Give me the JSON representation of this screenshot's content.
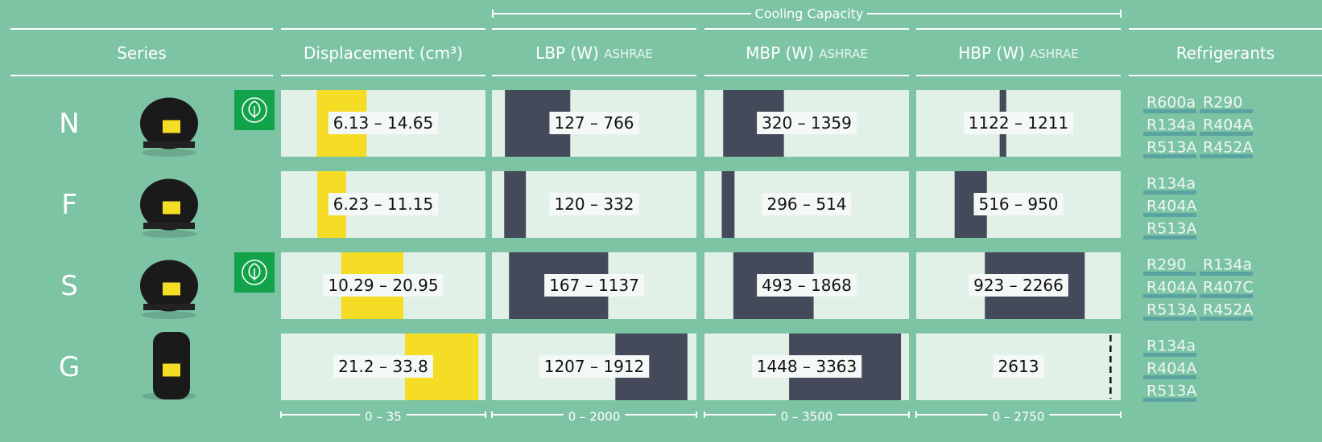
{
  "header": {
    "group": "Cooling Capacity",
    "columns": [
      {
        "label": "Series"
      },
      {
        "label": "Displacement (cm³)"
      },
      {
        "label": "LBP (W)",
        "note": "ASHRAE"
      },
      {
        "label": "MBP (W)",
        "note": "ASHRAE"
      },
      {
        "label": "HBP (W)",
        "note": "ASHRAE"
      },
      {
        "label": "Refrigerants"
      }
    ]
  },
  "scales": [
    {
      "min": 0,
      "max": 35,
      "label": "0 – 35"
    },
    {
      "min": 0,
      "max": 2000,
      "label": "0 – 2000"
    },
    {
      "min": 0,
      "max": 3500,
      "label": "0 – 3500"
    },
    {
      "min": 0,
      "max": 2750,
      "label": "0 – 2750"
    }
  ],
  "rows": [
    {
      "series": "N",
      "eco": true,
      "ranges": [
        {
          "low": 6.13,
          "high": 14.65,
          "label": "6.13 – 14.65"
        },
        {
          "low": 127,
          "high": 766,
          "label": "127 – 766"
        },
        {
          "low": 320,
          "high": 1359,
          "label": "320 – 1359"
        },
        {
          "low": 1122,
          "high": 1211,
          "label": "1122 – 1211"
        }
      ],
      "refrigerants": [
        "R600a",
        "R290",
        "R134a",
        "R404A",
        "R513A",
        "R452A"
      ]
    },
    {
      "series": "F",
      "eco": false,
      "ranges": [
        {
          "low": 6.23,
          "high": 11.15,
          "label": "6.23 – 11.15"
        },
        {
          "low": 120,
          "high": 332,
          "label": "120 – 332"
        },
        {
          "low": 296,
          "high": 514,
          "label": "296 – 514"
        },
        {
          "low": 516,
          "high": 950,
          "label": "516 – 950"
        }
      ],
      "refrigerants": [
        "R134a",
        "R404A",
        "R513A"
      ]
    },
    {
      "series": "S",
      "eco": true,
      "ranges": [
        {
          "low": 10.29,
          "high": 20.95,
          "label": "10.29 – 20.95"
        },
        {
          "low": 167,
          "high": 1137,
          "label": "167 – 1137"
        },
        {
          "low": 493,
          "high": 1868,
          "label": "493 – 1868"
        },
        {
          "low": 923,
          "high": 2266,
          "label": "923 – 2266"
        }
      ],
      "refrigerants": [
        "R290",
        "R134a",
        "R404A",
        "R407C",
        "R513A",
        "R452A"
      ]
    },
    {
      "series": "G",
      "eco": false,
      "ranges": [
        {
          "low": 21.2,
          "high": 33.8,
          "label": "21.2 – 33.8"
        },
        {
          "low": 1207,
          "high": 1912,
          "label": "1207 – 1912"
        },
        {
          "low": 1448,
          "high": 3363,
          "label": "1448 – 3363"
        },
        {
          "value": 2613,
          "label": "2613"
        }
      ],
      "refrigerants": [
        "R134a",
        "R404A",
        "R513A"
      ]
    }
  ]
}
